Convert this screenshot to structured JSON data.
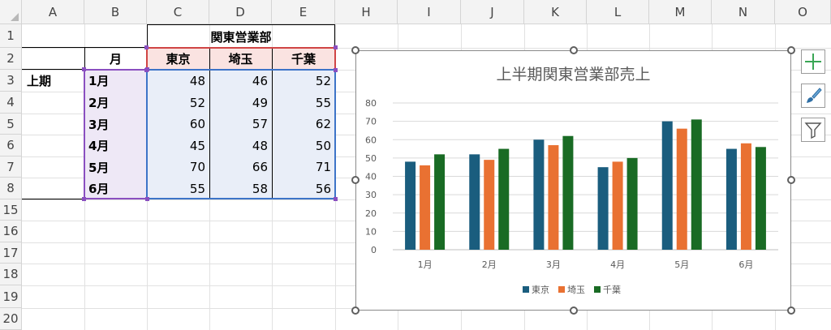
{
  "columns": [
    "A",
    "B",
    "C",
    "D",
    "E",
    "H",
    "I",
    "J",
    "K",
    "L",
    "M",
    "N",
    "O"
  ],
  "rows": [
    "1",
    "2",
    "3",
    "4",
    "5",
    "6",
    "7",
    "8",
    "15",
    "16",
    "17",
    "18",
    "19",
    "20"
  ],
  "table": {
    "group_header": "関東営業部",
    "row_header": "上期",
    "month_header": "月",
    "regions": [
      "東京",
      "埼玉",
      "千葉"
    ],
    "months": [
      "1月",
      "2月",
      "3月",
      "4月",
      "5月",
      "6月"
    ],
    "values": [
      [
        48,
        46,
        52
      ],
      [
        52,
        49,
        55
      ],
      [
        60,
        57,
        62
      ],
      [
        45,
        48,
        50
      ],
      [
        70,
        66,
        71
      ],
      [
        55,
        58,
        56
      ]
    ]
  },
  "chart_buttons": {
    "add": "chart-elements-plus-icon",
    "style": "brush-icon",
    "filter": "funnel-icon"
  },
  "chart_data": {
    "type": "bar",
    "title": "上半期関東営業部売上",
    "categories": [
      "1月",
      "2月",
      "3月",
      "4月",
      "5月",
      "6月"
    ],
    "series": [
      {
        "name": "東京",
        "values": [
          48,
          52,
          60,
          45,
          70,
          55
        ],
        "color": "#1a5d7e"
      },
      {
        "name": "埼玉",
        "values": [
          46,
          49,
          57,
          48,
          66,
          58
        ],
        "color": "#e97132"
      },
      {
        "name": "千葉",
        "values": [
          52,
          55,
          62,
          50,
          71,
          56
        ],
        "color": "#196b24"
      }
    ],
    "ylim": [
      0,
      80
    ],
    "yticks": [
      0,
      10,
      20,
      30,
      40,
      50,
      60,
      70,
      80
    ],
    "grid": true,
    "legend": "bottom"
  }
}
